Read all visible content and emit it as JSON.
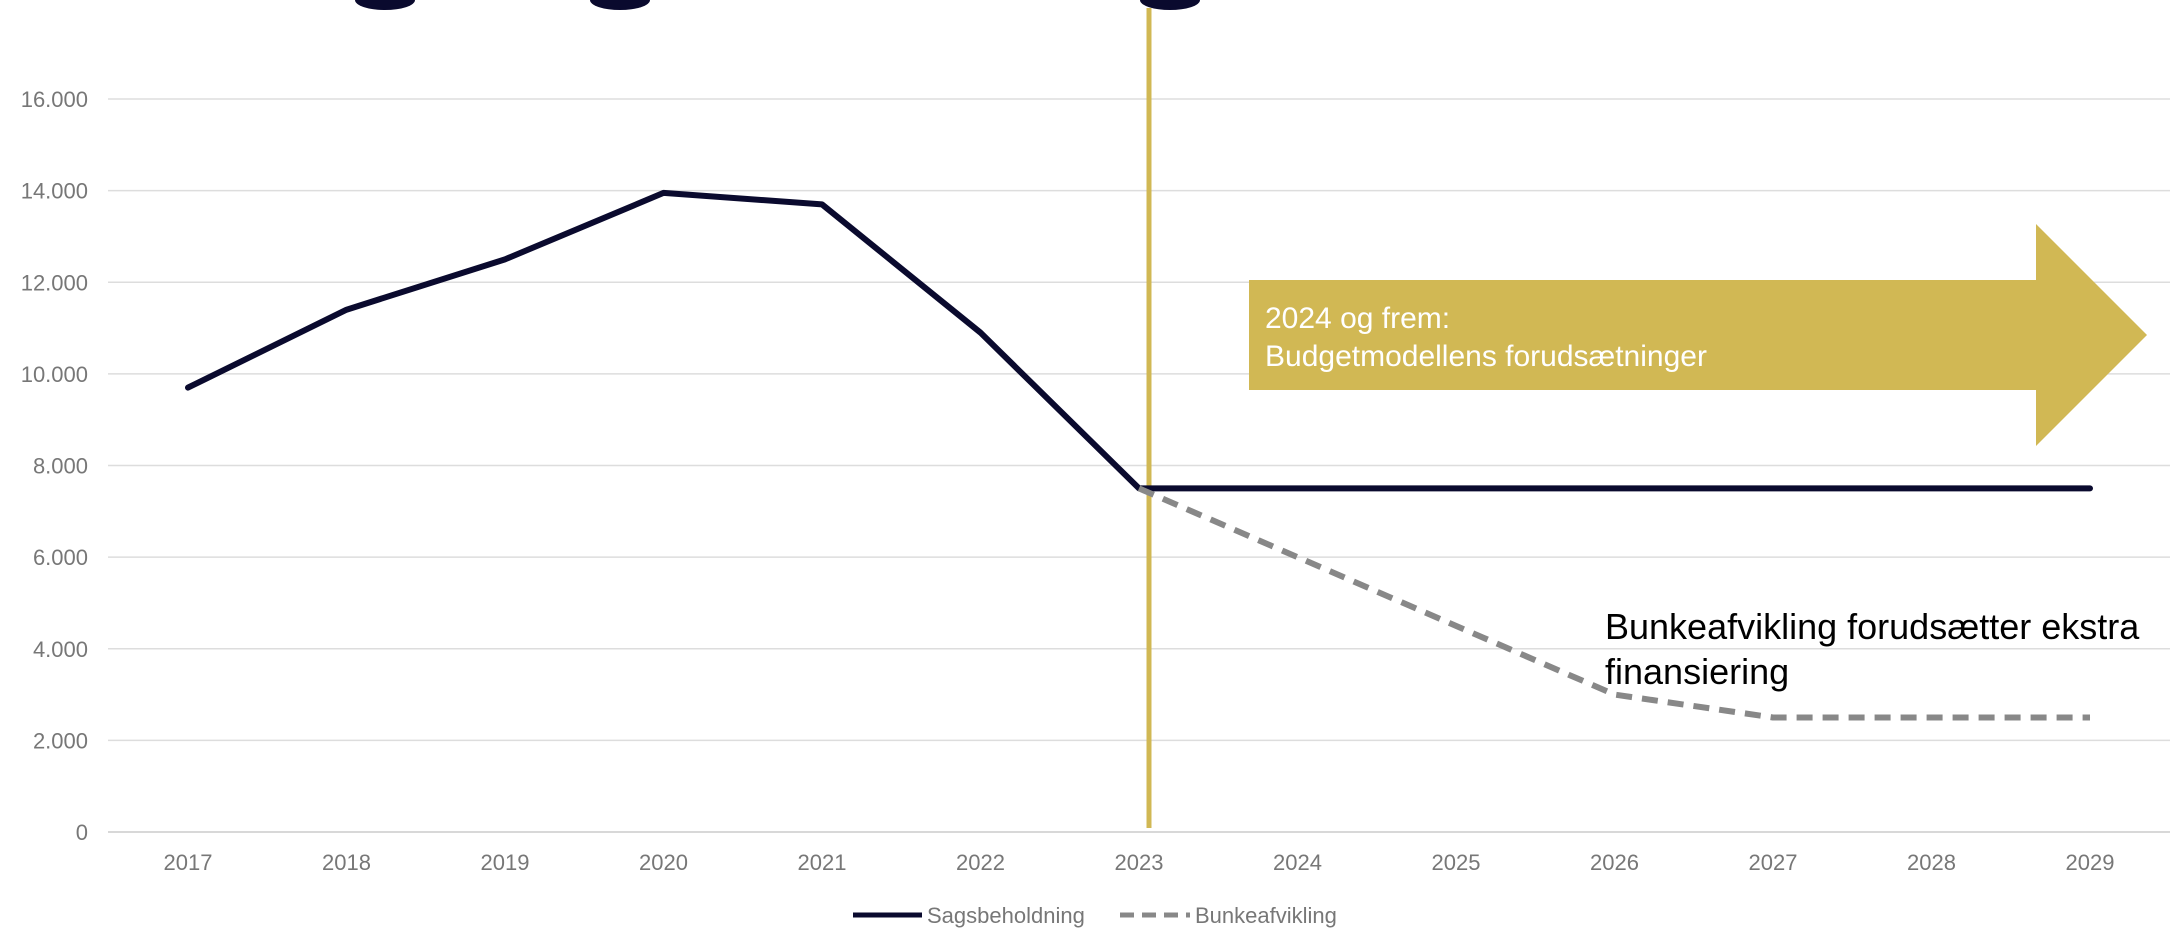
{
  "chart_data": {
    "type": "line",
    "categories": [
      "2017",
      "2018",
      "2019",
      "2020",
      "2021",
      "2022",
      "2023",
      "2024",
      "2025",
      "2026",
      "2027",
      "2028",
      "2029"
    ],
    "series": [
      {
        "name": "Sagsbeholdning",
        "color": "#0a0a2e",
        "style": "solid",
        "values": [
          9700,
          11400,
          12500,
          13950,
          13700,
          10900,
          7500,
          7500,
          7500,
          7500,
          7500,
          7500,
          7500
        ]
      },
      {
        "name": "Bunkeafvikling",
        "color": "#888888",
        "style": "dashed",
        "values": [
          null,
          null,
          null,
          null,
          null,
          null,
          7500,
          6000,
          4500,
          3000,
          2500,
          2500,
          2500
        ]
      }
    ],
    "ylim": [
      0,
      17000
    ],
    "yticks": [
      0,
      2000,
      4000,
      6000,
      8000,
      10000,
      12000,
      14000,
      16000
    ],
    "ytick_labels": [
      "0",
      "2.000",
      "4.000",
      "6.000",
      "8.000",
      "10.000",
      "12.000",
      "14.000",
      "16.000"
    ],
    "grid": true,
    "legend_position": "bottom",
    "reference_line": {
      "x": "2023",
      "color": "#d1b854"
    },
    "callout": {
      "line1": "2024 og frem:",
      "line2": "Budgetmodellens forudsætninger",
      "color": "#d1b854"
    },
    "annotation": {
      "line1": "Bunkeafvikling forudsætter ekstra",
      "line2": "finansiering"
    },
    "title_color": "#0a0a2e"
  }
}
